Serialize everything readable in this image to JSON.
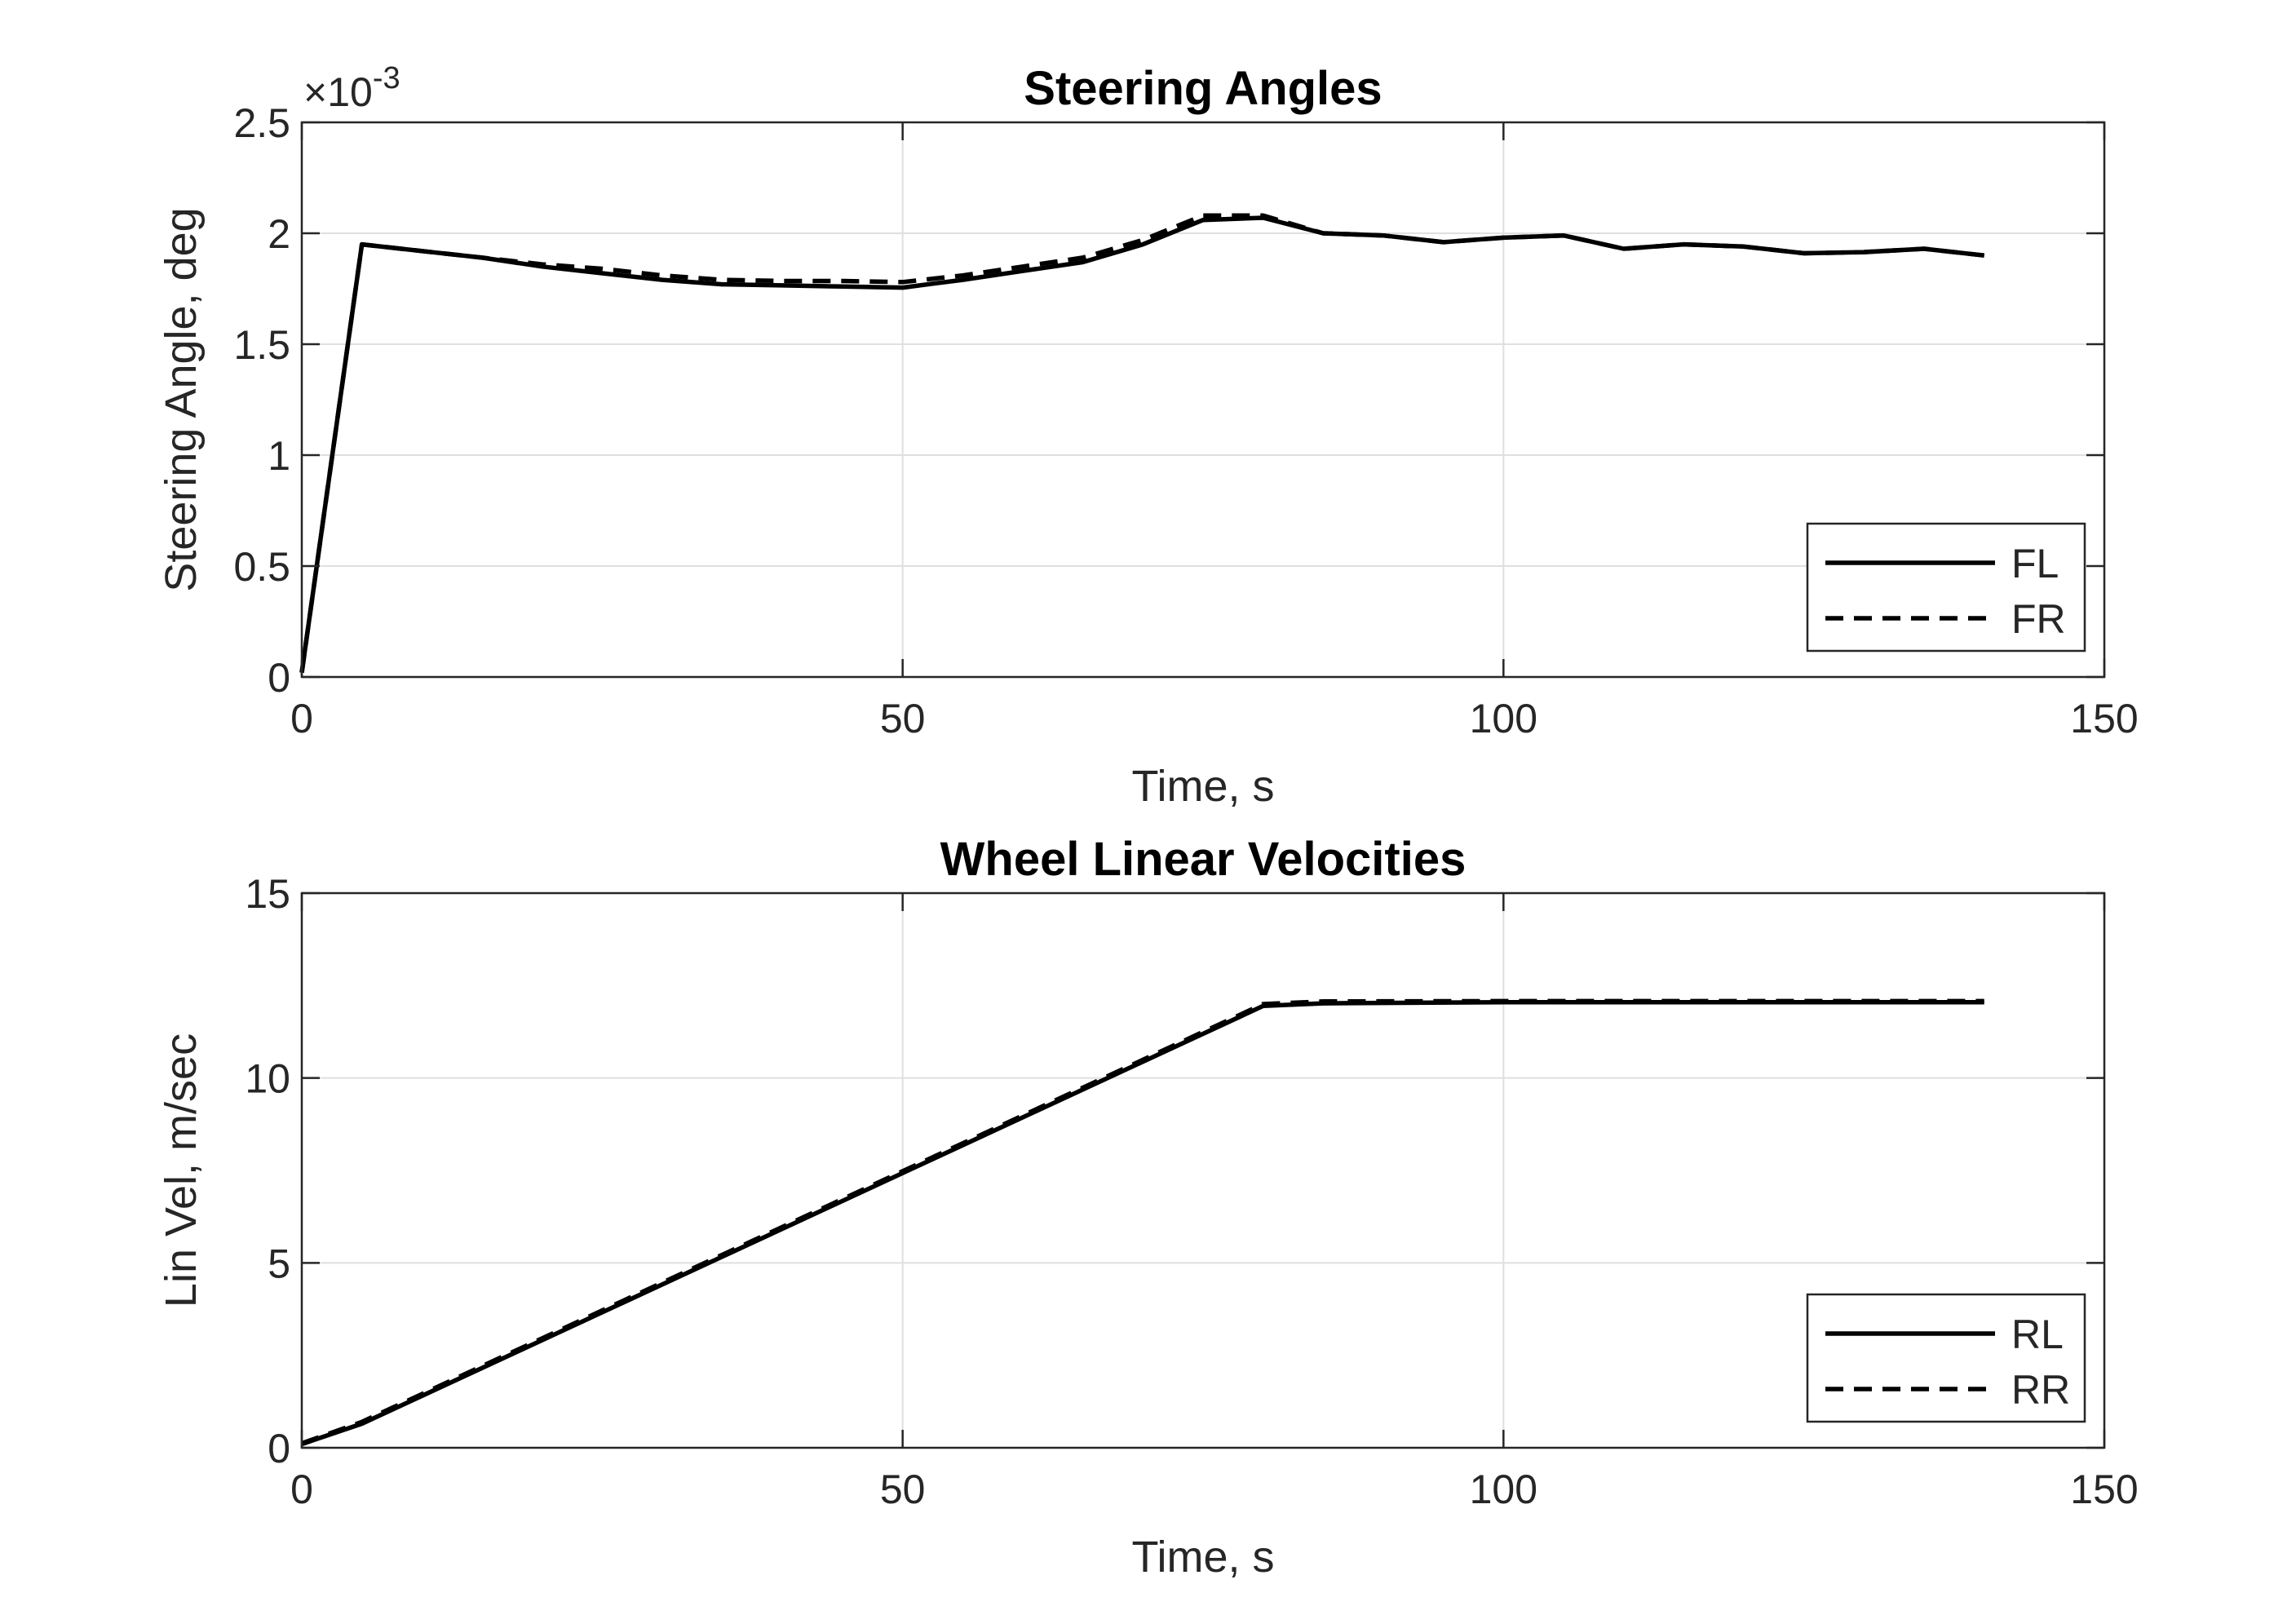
{
  "colors": {
    "background": "#ffffff",
    "axes": "#262626",
    "grid": "#dfdfdf",
    "line": "#000000"
  },
  "chart_data": [
    {
      "type": "line",
      "title": "Steering Angles",
      "xlabel": "Time, s",
      "ylabel": "Steering Angle, deg",
      "exponent_label": "×10",
      "exponent_power": "-3",
      "xlim": [
        0,
        150
      ],
      "ylim": [
        0,
        2.5
      ],
      "xticks": [
        0,
        50,
        100,
        150
      ],
      "xtick_labels": [
        "0",
        "50",
        "100",
        "150"
      ],
      "yticks": [
        0,
        0.5,
        1,
        1.5,
        2,
        2.5
      ],
      "ytick_labels": [
        "0",
        "0.5",
        "1",
        "1.5",
        "2",
        "2.5"
      ],
      "grid": true,
      "legend_position": "bottom-right",
      "series": [
        {
          "name": "FL",
          "style": "solid",
          "x": [
            0,
            5,
            10,
            15,
            20,
            25,
            30,
            35,
            40,
            45,
            50,
            55,
            60,
            65,
            70,
            75,
            80,
            85,
            90,
            95,
            100,
            105,
            110,
            115,
            120,
            125,
            130,
            135,
            140
          ],
          "y": [
            0.02,
            1.95,
            1.92,
            1.89,
            1.85,
            1.82,
            1.79,
            1.77,
            1.765,
            1.76,
            1.755,
            1.79,
            1.83,
            1.87,
            1.95,
            2.06,
            2.07,
            2.0,
            1.99,
            1.96,
            1.98,
            1.99,
            1.93,
            1.95,
            1.94,
            1.91,
            1.915,
            1.93,
            1.9
          ]
        },
        {
          "name": "FR",
          "style": "dashed",
          "x": [
            0,
            5,
            10,
            15,
            20,
            25,
            30,
            35,
            40,
            45,
            50,
            55,
            60,
            65,
            70,
            75,
            80,
            85,
            90,
            95,
            100,
            105,
            110,
            115,
            120,
            125,
            130,
            135,
            140
          ],
          "y": [
            0.02,
            1.95,
            1.92,
            1.89,
            1.86,
            1.84,
            1.81,
            1.79,
            1.785,
            1.785,
            1.78,
            1.81,
            1.85,
            1.89,
            1.97,
            2.08,
            2.08,
            2.0,
            1.99,
            1.96,
            1.98,
            1.99,
            1.93,
            1.95,
            1.94,
            1.91,
            1.915,
            1.93,
            1.9
          ]
        }
      ]
    },
    {
      "type": "line",
      "title": "Wheel Linear Velocities",
      "xlabel": "Time, s",
      "ylabel": "Lin Vel, m/sec",
      "xlim": [
        0,
        150
      ],
      "ylim": [
        0,
        15
      ],
      "xticks": [
        0,
        50,
        100,
        150
      ],
      "xtick_labels": [
        "0",
        "50",
        "100",
        "150"
      ],
      "yticks": [
        0,
        5,
        10,
        15
      ],
      "ytick_labels": [
        "0",
        "5",
        "10",
        "15"
      ],
      "grid": true,
      "legend_position": "bottom-right",
      "series": [
        {
          "name": "RL",
          "style": "solid",
          "x": [
            0,
            5,
            80,
            85,
            100,
            140
          ],
          "y": [
            0.1,
            0.65,
            11.95,
            12.02,
            12.05,
            12.05
          ]
        },
        {
          "name": "RR",
          "style": "dashed",
          "x": [
            0,
            5,
            80,
            85,
            100,
            140
          ],
          "y": [
            0.12,
            0.7,
            12.0,
            12.07,
            12.08,
            12.08
          ]
        }
      ]
    }
  ]
}
